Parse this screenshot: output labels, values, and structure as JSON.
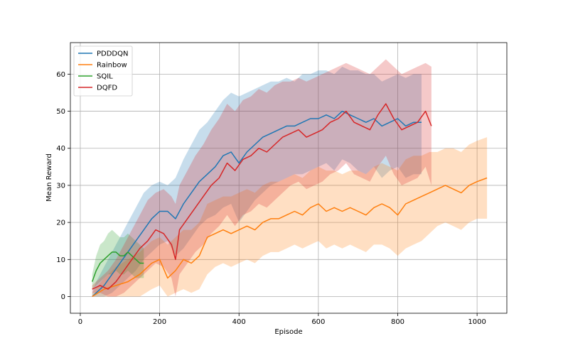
{
  "chart_data": {
    "type": "line",
    "title": "",
    "xlabel": "Episode",
    "ylabel": "Mean Reward",
    "xlim": [
      -25,
      1075
    ],
    "ylim": [
      -4.5,
      68.5
    ],
    "xticks": [
      0,
      200,
      400,
      600,
      800,
      1000
    ],
    "yticks": [
      0,
      10,
      20,
      30,
      40,
      50,
      60
    ],
    "grid": true,
    "legend_position": "top-left",
    "series": [
      {
        "name": "PDDDQN",
        "color": "#1f77b4",
        "x": [
          30,
          40,
          60,
          80,
          100,
          120,
          140,
          160,
          180,
          200,
          220,
          240,
          260,
          280,
          300,
          320,
          340,
          360,
          380,
          400,
          420,
          440,
          460,
          480,
          500,
          520,
          540,
          560,
          580,
          600,
          620,
          640,
          660,
          680,
          700,
          720,
          740,
          760,
          780,
          800,
          820,
          840,
          860
        ],
        "y": [
          0,
          1,
          3,
          6,
          9,
          12,
          15,
          18,
          21,
          23,
          23,
          21,
          25,
          28,
          31,
          33,
          35,
          38,
          39,
          36,
          39,
          41,
          43,
          44,
          45,
          46,
          46,
          47,
          48,
          48,
          49,
          48,
          50,
          49,
          48,
          47,
          48,
          46,
          47,
          48,
          46,
          47,
          47
        ],
        "upper": [
          1,
          4,
          8,
          12,
          16,
          20,
          24,
          28,
          30,
          31,
          30,
          32,
          37,
          41,
          45,
          47,
          50,
          53,
          55,
          54,
          55,
          56,
          57,
          58,
          58,
          59,
          58,
          60,
          60,
          61,
          61,
          60,
          62,
          61,
          61,
          60,
          60,
          58,
          59,
          60,
          59,
          60,
          60
        ],
        "lower": [
          0,
          0,
          0,
          1,
          3,
          5,
          7,
          10,
          12,
          14,
          15,
          11,
          13,
          16,
          19,
          21,
          22,
          24,
          25,
          20,
          23,
          26,
          28,
          30,
          31,
          32,
          33,
          33,
          34,
          35,
          36,
          34,
          37,
          36,
          34,
          33,
          35,
          32,
          34,
          35,
          32,
          33,
          33
        ]
      },
      {
        "name": "Rainbow",
        "color": "#ff7f0e",
        "x": [
          30,
          60,
          90,
          120,
          150,
          180,
          200,
          220,
          240,
          260,
          280,
          300,
          320,
          340,
          360,
          380,
          400,
          420,
          440,
          460,
          480,
          500,
          520,
          540,
          560,
          580,
          600,
          620,
          640,
          660,
          680,
          700,
          720,
          740,
          760,
          780,
          800,
          820,
          840,
          860,
          880,
          900,
          920,
          940,
          960,
          980,
          1000,
          1025
        ],
        "y": [
          0,
          2,
          3,
          4,
          6,
          9,
          10,
          5,
          7,
          10,
          9,
          11,
          16,
          17,
          18,
          17,
          18,
          19,
          18,
          20,
          21,
          21,
          22,
          23,
          22,
          24,
          25,
          23,
          24,
          23,
          24,
          23,
          22,
          24,
          25,
          24,
          22,
          25,
          26,
          27,
          28,
          29,
          30,
          29,
          28,
          30,
          31,
          32
        ],
        "upper": [
          1,
          5,
          8,
          10,
          12,
          15,
          16,
          14,
          16,
          18,
          18,
          20,
          25,
          26,
          27,
          27,
          28,
          29,
          28,
          30,
          31,
          31,
          32,
          33,
          32,
          34,
          35,
          34,
          34,
          33,
          34,
          34,
          33,
          35,
          36,
          35,
          34,
          37,
          38,
          38,
          39,
          39,
          40,
          40,
          39,
          41,
          42,
          43
        ],
        "lower": [
          0,
          0,
          0,
          0,
          0,
          2,
          3,
          0,
          1,
          2,
          1,
          2,
          6,
          8,
          9,
          8,
          9,
          10,
          9,
          11,
          12,
          12,
          13,
          14,
          13,
          14,
          15,
          13,
          14,
          13,
          14,
          13,
          12,
          14,
          14,
          13,
          11,
          13,
          14,
          15,
          17,
          19,
          20,
          19,
          18,
          20,
          21,
          21
        ]
      },
      {
        "name": "SQIL",
        "color": "#2ca02c",
        "x": [
          30,
          40,
          50,
          60,
          70,
          80,
          90,
          100,
          110,
          120,
          130,
          140,
          150,
          160
        ],
        "y": [
          4,
          7,
          9,
          10,
          11,
          12,
          12,
          11,
          11,
          12,
          11,
          10,
          9,
          9
        ],
        "upper": [
          6,
          11,
          14,
          15,
          17,
          18,
          17,
          16,
          16,
          17,
          16,
          15,
          14,
          13
        ],
        "lower": [
          2,
          3,
          4,
          5,
          6,
          6,
          7,
          6,
          6,
          7,
          6,
          5,
          5,
          5
        ]
      },
      {
        "name": "DQFD",
        "color": "#d62728",
        "x": [
          30,
          50,
          70,
          90,
          110,
          130,
          150,
          170,
          190,
          210,
          230,
          240,
          250,
          270,
          290,
          310,
          330,
          350,
          370,
          390,
          410,
          430,
          450,
          470,
          490,
          510,
          530,
          550,
          570,
          590,
          610,
          630,
          650,
          670,
          690,
          710,
          730,
          750,
          770,
          790,
          810,
          830,
          850,
          870,
          885
        ],
        "y": [
          2,
          3,
          2,
          4,
          7,
          10,
          13,
          15,
          18,
          17,
          14,
          10,
          18,
          21,
          24,
          27,
          30,
          32,
          36,
          34,
          37,
          38,
          40,
          39,
          41,
          43,
          44,
          45,
          43,
          44,
          45,
          47,
          48,
          50,
          47,
          46,
          45,
          49,
          52,
          48,
          45,
          46,
          47,
          50,
          46
        ],
        "upper": [
          3,
          5,
          7,
          10,
          14,
          18,
          22,
          26,
          28,
          29,
          27,
          25,
          30,
          34,
          38,
          41,
          45,
          48,
          52,
          50,
          53,
          54,
          56,
          55,
          57,
          58,
          58,
          59,
          58,
          59,
          60,
          61,
          62,
          63,
          62,
          61,
          60,
          62,
          64,
          62,
          60,
          61,
          62,
          63,
          62
        ],
        "lower": [
          1,
          1,
          0,
          0,
          1,
          3,
          5,
          7,
          9,
          8,
          5,
          0,
          6,
          9,
          12,
          14,
          17,
          19,
          22,
          19,
          22,
          23,
          25,
          24,
          26,
          28,
          30,
          31,
          29,
          30,
          31,
          33,
          34,
          36,
          33,
          32,
          31,
          35,
          38,
          33,
          30,
          31,
          32,
          35,
          30
        ]
      }
    ]
  }
}
